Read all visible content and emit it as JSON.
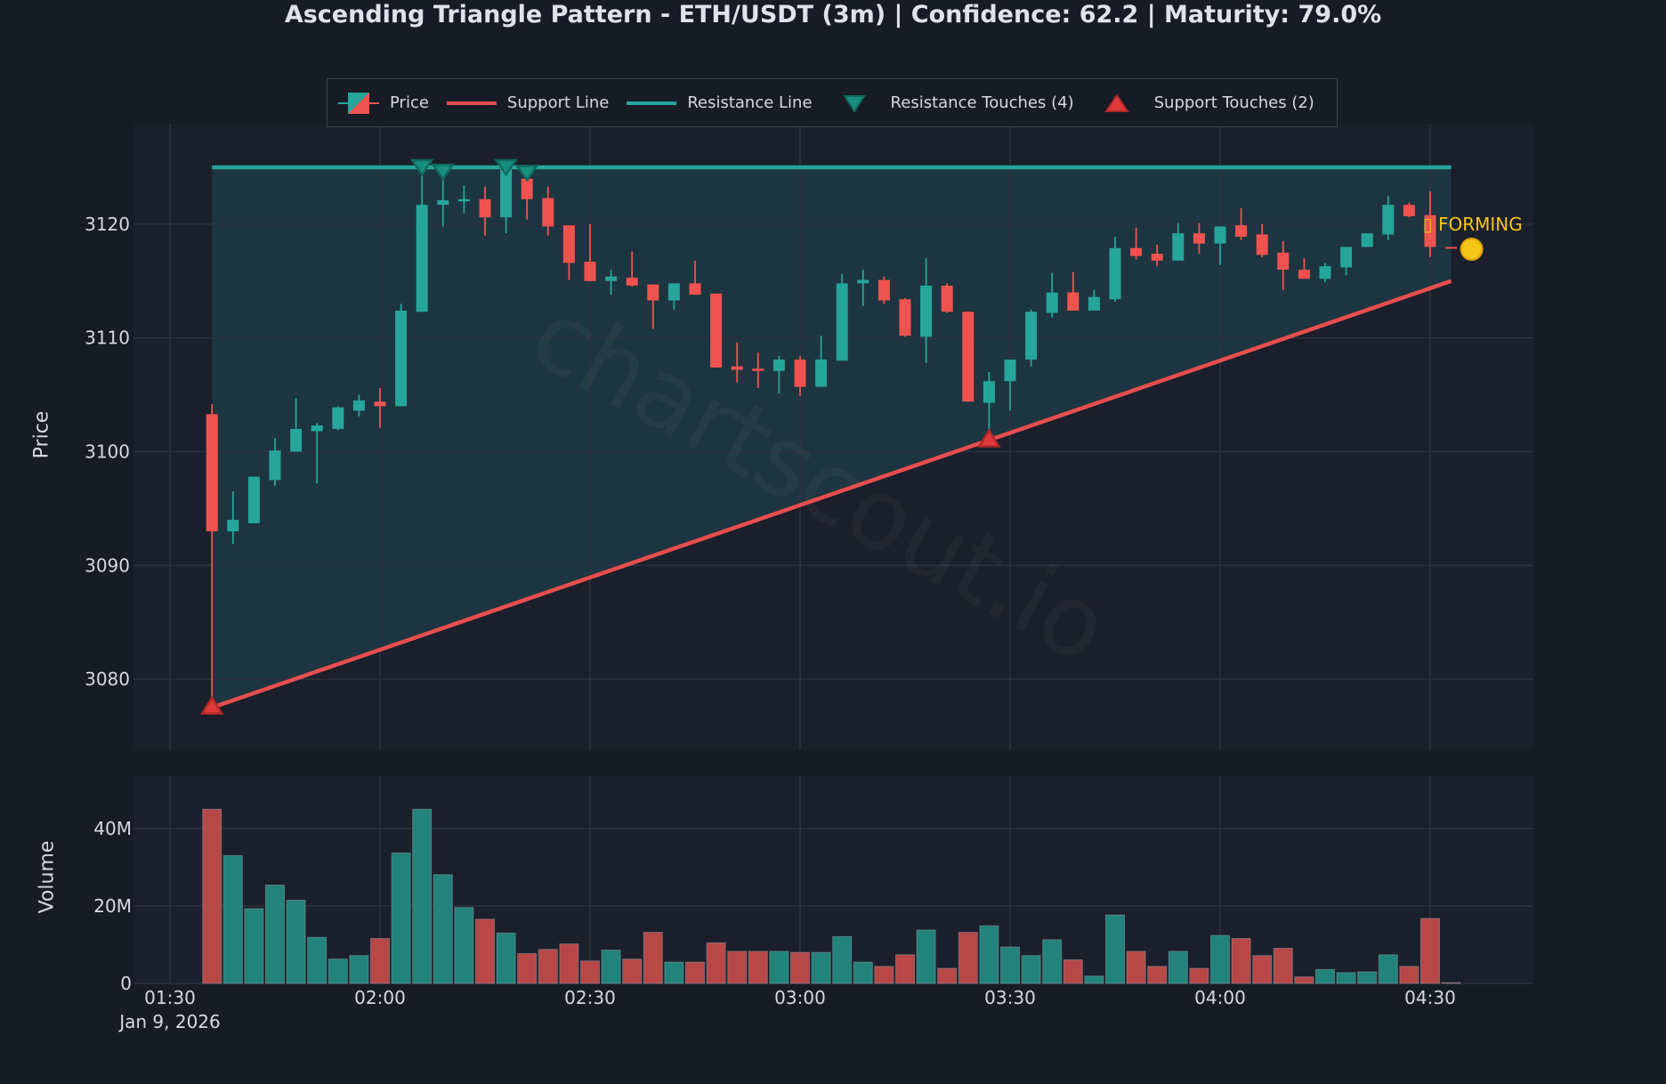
{
  "title": "Ascending Triangle Pattern - ETH/USDT (3m) | Confidence: 62.2 | Maturity: 79.0%",
  "legend": [
    {
      "id": "price",
      "label": "Price",
      "icon": "candlestick-icon"
    },
    {
      "id": "support",
      "label": "Support Line",
      "icon": "red-line-icon"
    },
    {
      "id": "resistance",
      "label": "Resistance Line",
      "icon": "teal-line-icon"
    },
    {
      "id": "res_touch",
      "label": "Resistance Touches (4)",
      "icon": "triangle-down-icon"
    },
    {
      "id": "sup_touch",
      "label": "Support Touches (2)",
      "icon": "triangle-up-icon"
    }
  ],
  "annotation": {
    "text": "FORMING",
    "glyph": "▯",
    "color": "#f5c518"
  },
  "watermark": "chartscout.io",
  "colors": {
    "background": "#161b26",
    "plot_bg": "#1a1f2b",
    "bull": "#26a69a",
    "bear": "#ef5350",
    "bull_volume": "#21837a",
    "bear_volume": "#b84747",
    "resistance": "#26a69a",
    "support": "#e84e4e",
    "triangle_fill": "#1d3540",
    "grid": "#2c3240",
    "text": "#d6d9df",
    "forming_dot": "#f5c518"
  },
  "chart_data": {
    "type": "candlestick",
    "title": "Ascending Triangle Pattern - ETH/USDT (3m) | Confidence: 62.2 | Maturity: 79.0%",
    "symbol": "ETH/USDT",
    "timeframe": "3m",
    "confidence": 62.2,
    "maturity_pct": 79.0,
    "status": "FORMING",
    "date_label": "Jan 9, 2026",
    "x_ticks": [
      "01:30",
      "02:00",
      "02:30",
      "03:00",
      "03:30",
      "04:00",
      "04:30"
    ],
    "price_axis": {
      "label": "Price",
      "ticks": [
        3080,
        3090,
        3100,
        3110,
        3120
      ],
      "ylim": [
        3075.4,
        3130.4
      ]
    },
    "volume_axis": {
      "label": "Volume",
      "ticks": [
        "0",
        "20M",
        "40M"
      ],
      "tick_values": [
        0,
        20,
        40
      ],
      "ylim": [
        0,
        54
      ],
      "unit": "M"
    },
    "start_time": "01:36",
    "interval_min": 3,
    "candles": [
      [
        3103.3,
        3104.2,
        3077.6,
        3093.0
      ],
      [
        3093.0,
        3096.5,
        3091.9,
        3094.0
      ],
      [
        3093.7,
        3097.8,
        3093.7,
        3097.8
      ],
      [
        3097.5,
        3101.2,
        3097.0,
        3100.1
      ],
      [
        3100.0,
        3104.7,
        3100.0,
        3102.0
      ],
      [
        3101.8,
        3102.5,
        3097.2,
        3102.3
      ],
      [
        3102.0,
        3104.0,
        3101.9,
        3103.9
      ],
      [
        3103.6,
        3105.0,
        3103.1,
        3104.5
      ],
      [
        3104.4,
        3105.6,
        3102.1,
        3104.0
      ],
      [
        3104.0,
        3113.0,
        3104.0,
        3112.4
      ],
      [
        3112.3,
        3125.0,
        3112.3,
        3121.7
      ],
      [
        3121.7,
        3124.6,
        3119.8,
        3122.1
      ],
      [
        3122.0,
        3123.4,
        3121.0,
        3122.2
      ],
      [
        3122.2,
        3123.3,
        3119.0,
        3120.6
      ],
      [
        3120.6,
        3125.0,
        3119.2,
        3124.8
      ],
      [
        3124.0,
        3124.5,
        3120.4,
        3122.2
      ],
      [
        3122.3,
        3123.3,
        3119.0,
        3119.8
      ],
      [
        3119.9,
        3119.9,
        3115.1,
        3116.6
      ],
      [
        3116.7,
        3120.0,
        3115.0,
        3115.0
      ],
      [
        3115.0,
        3116.0,
        3113.8,
        3115.4
      ],
      [
        3115.3,
        3117.6,
        3114.5,
        3114.6
      ],
      [
        3114.7,
        3114.7,
        3110.8,
        3113.3
      ],
      [
        3113.3,
        3114.8,
        3112.5,
        3114.8
      ],
      [
        3114.8,
        3116.8,
        3113.8,
        3113.8
      ],
      [
        3113.9,
        3113.9,
        3107.4,
        3107.4
      ],
      [
        3107.5,
        3109.6,
        3106.1,
        3107.2
      ],
      [
        3107.3,
        3108.7,
        3105.6,
        3107.1
      ],
      [
        3107.1,
        3108.4,
        3105.1,
        3108.1
      ],
      [
        3108.1,
        3108.4,
        3104.9,
        3105.7
      ],
      [
        3105.7,
        3110.2,
        3105.7,
        3108.1
      ],
      [
        3108.0,
        3115.6,
        3108.0,
        3114.8
      ],
      [
        3114.8,
        3116.0,
        3112.8,
        3115.1
      ],
      [
        3115.1,
        3115.4,
        3113.0,
        3113.3
      ],
      [
        3113.4,
        3113.5,
        3110.1,
        3110.2
      ],
      [
        3110.1,
        3117.0,
        3107.8,
        3114.6
      ],
      [
        3114.6,
        3114.8,
        3112.2,
        3112.3
      ],
      [
        3112.3,
        3112.3,
        3104.4,
        3104.4
      ],
      [
        3104.3,
        3107.0,
        3101.1,
        3106.2
      ],
      [
        3106.2,
        3108.1,
        3103.6,
        3108.1
      ],
      [
        3108.1,
        3112.5,
        3107.5,
        3112.3
      ],
      [
        3112.2,
        3115.7,
        3111.8,
        3114.0
      ],
      [
        3114.0,
        3115.8,
        3112.4,
        3112.4
      ],
      [
        3112.4,
        3114.2,
        3112.4,
        3113.6
      ],
      [
        3113.4,
        3118.9,
        3113.2,
        3117.9
      ],
      [
        3117.9,
        3119.7,
        3116.9,
        3117.2
      ],
      [
        3117.4,
        3118.2,
        3116.3,
        3116.8
      ],
      [
        3116.8,
        3120.1,
        3116.8,
        3119.2
      ],
      [
        3119.2,
        3120.1,
        3117.4,
        3118.3
      ],
      [
        3118.3,
        3119.8,
        3116.4,
        3119.8
      ],
      [
        3119.9,
        3121.4,
        3118.6,
        3118.9
      ],
      [
        3119.1,
        3120.0,
        3117.1,
        3117.3
      ],
      [
        3117.5,
        3118.5,
        3114.2,
        3116.0
      ],
      [
        3116.0,
        3117.0,
        3115.2,
        3115.2
      ],
      [
        3115.2,
        3116.6,
        3114.9,
        3116.3
      ],
      [
        3116.2,
        3118.0,
        3115.5,
        3118.0
      ],
      [
        3118.0,
        3119.2,
        3118.0,
        3119.2
      ],
      [
        3119.1,
        3122.5,
        3118.6,
        3121.7
      ],
      [
        3121.7,
        3121.9,
        3120.6,
        3120.7
      ],
      [
        3120.8,
        3122.9,
        3117.1,
        3118.0
      ],
      [
        3118.0,
        3118.0,
        3117.9,
        3117.9
      ]
    ],
    "candle_format": [
      "open",
      "high",
      "low",
      "close"
    ],
    "volume_millions": [
      45,
      33,
      19.3,
      25.4,
      21.5,
      11.9,
      6.3,
      7.2,
      11.6,
      33.7,
      45,
      28.1,
      19.6,
      16.6,
      13,
      7.7,
      8.8,
      10.2,
      5.8,
      8.6,
      6.3,
      13.2,
      5.5,
      5.5,
      10.5,
      8.3,
      8.3,
      8.3,
      8,
      8,
      12.1,
      5.5,
      4.4,
      7.4,
      13.8,
      3.9,
      13.2,
      14.9,
      9.4,
      7.2,
      11.3,
      6.1,
      1.9,
      17.7,
      8.3,
      4.4,
      8.3,
      3.9,
      12.4,
      11.6,
      7.2,
      9.1,
      1.7,
      3.6,
      2.8,
      3,
      7.4,
      4.4,
      16.8,
      0.2
    ],
    "resistance_line": {
      "price": 3125.0,
      "from_index": 0,
      "to_index": 59
    },
    "support_line": {
      "from": {
        "index": 0,
        "price": 3077.5
      },
      "to": {
        "index": 59,
        "price": 3115.0
      }
    },
    "resistance_touches": [
      {
        "index": 10,
        "price": 3125.0
      },
      {
        "index": 11,
        "price": 3124.6
      },
      {
        "index": 14,
        "price": 3125.0
      },
      {
        "index": 15,
        "price": 3124.5
      }
    ],
    "support_touches": [
      {
        "index": 0,
        "price": 3077.6
      },
      {
        "index": 37,
        "price": 3101.1
      }
    ],
    "forming_marker": {
      "index": 59,
      "price": 3117.8,
      "label": "FORMING"
    }
  }
}
